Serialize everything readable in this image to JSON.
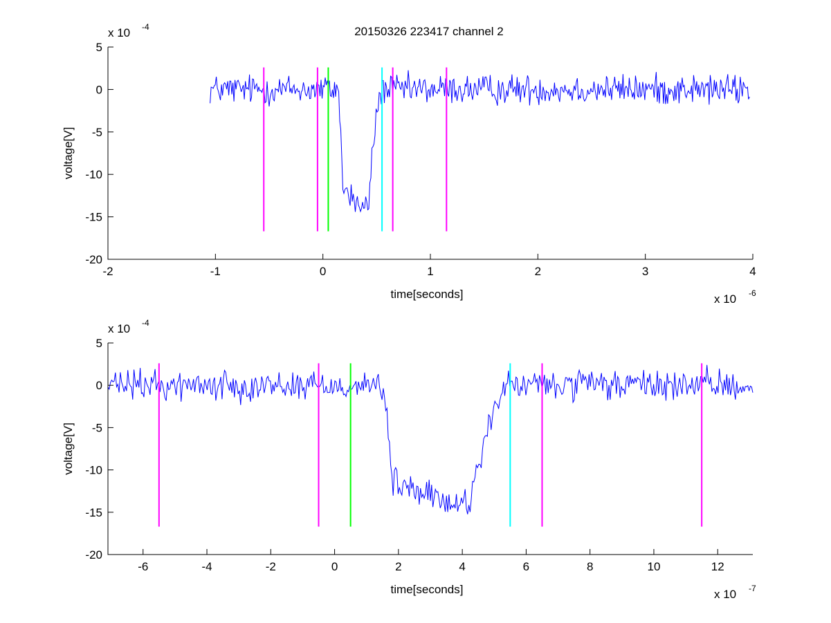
{
  "figure": {
    "title": "20150326 223417 channel 2"
  },
  "chart_data": [
    {
      "type": "line",
      "title": "20150326 223417 channel 2",
      "xlabel": "time[seconds]",
      "ylabel": "voltage[V]",
      "x_multiplier": "x 10",
      "x_exponent": "-6",
      "y_multiplier": "x 10",
      "y_exponent": "-4",
      "x_unit_scale": 1e-06,
      "y_unit_scale": 0.0001,
      "xlim": [
        -2,
        4
      ],
      "ylim": [
        -20,
        5
      ],
      "x_ticks": [
        -2,
        -1,
        0,
        1,
        2,
        3,
        4
      ],
      "y_ticks": [
        -20,
        -15,
        -10,
        -5,
        0,
        5
      ],
      "x_tick_labels": [
        "-2",
        "-1",
        "0",
        "1",
        "2",
        "3",
        "4"
      ],
      "y_tick_labels": [
        "-20",
        "-15",
        "-10",
        "-5",
        "0",
        "5"
      ],
      "grid": false,
      "series": [
        {
          "color": "#0000ff",
          "x_range": [
            -1.05,
            3.97
          ],
          "baseline": 0,
          "noise_amplitude": 1.1,
          "pulse": {
            "start": 0.15,
            "drop_to": -11,
            "plateau_end_rise": 0.42,
            "bottom": -14,
            "recover_end": 0.55
          }
        }
      ],
      "markers": [
        {
          "x": -0.55,
          "color": "#ff00ff"
        },
        {
          "x": -0.05,
          "color": "#ff00ff"
        },
        {
          "x": 0.05,
          "color": "#00ff00"
        },
        {
          "x": 0.55,
          "color": "#00ffff"
        },
        {
          "x": 0.65,
          "color": "#ff00ff"
        },
        {
          "x": 1.15,
          "color": "#ff00ff"
        }
      ],
      "marker_range": [
        -16.7,
        2.6
      ]
    },
    {
      "type": "line",
      "title": "",
      "xlabel": "time[seconds]",
      "ylabel": "voltage[V]",
      "x_multiplier": "x 10",
      "x_exponent": "-7",
      "y_multiplier": "x 10",
      "y_exponent": "-4",
      "x_unit_scale": 1e-07,
      "y_unit_scale": 0.0001,
      "xlim": [
        -7.1,
        13.1
      ],
      "ylim": [
        -20,
        5
      ],
      "x_ticks": [
        -6,
        -4,
        -2,
        0,
        2,
        4,
        6,
        8,
        10,
        12
      ],
      "y_ticks": [
        -20,
        -15,
        -10,
        -5,
        0,
        5
      ],
      "x_tick_labels": [
        "-6",
        "-4",
        "-2",
        "0",
        "2",
        "4",
        "6",
        "8",
        "10",
        "12"
      ],
      "y_tick_labels": [
        "-20",
        "-15",
        "-10",
        "-5",
        "0",
        "5"
      ],
      "grid": false,
      "series": [
        {
          "color": "#0000ff",
          "x_range": [
            -7.1,
            13.1
          ],
          "baseline": 0,
          "noise_amplitude": 1.1,
          "pulse": {
            "start": 1.5,
            "drop_to": -11,
            "plateau_end_rise": 4.2,
            "bottom": -14,
            "recover_end": 5.5
          }
        }
      ],
      "markers": [
        {
          "x": -5.5,
          "color": "#ff00ff"
        },
        {
          "x": -0.5,
          "color": "#ff00ff"
        },
        {
          "x": 0.5,
          "color": "#00ff00"
        },
        {
          "x": 5.5,
          "color": "#00ffff"
        },
        {
          "x": 6.5,
          "color": "#ff00ff"
        },
        {
          "x": 11.5,
          "color": "#ff00ff"
        }
      ],
      "marker_range": [
        -16.7,
        2.6
      ]
    }
  ]
}
